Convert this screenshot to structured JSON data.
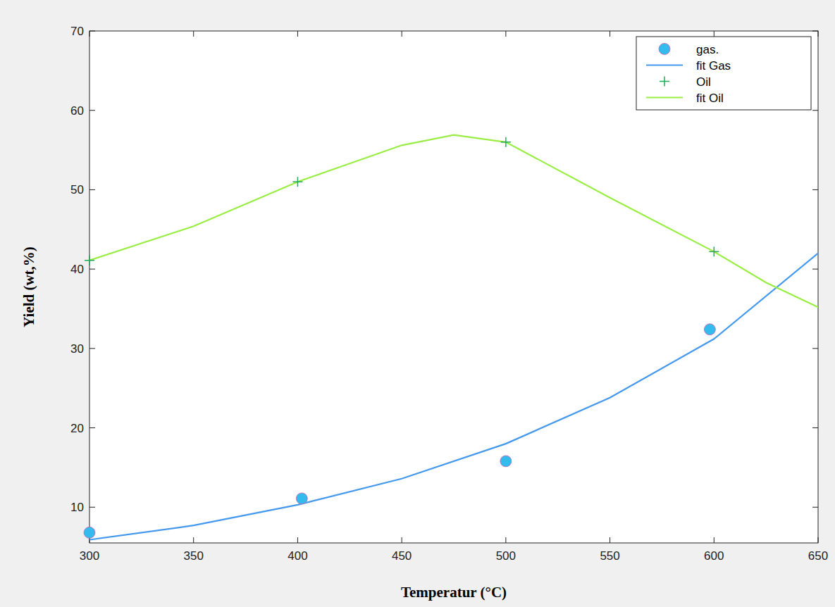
{
  "chart_data": {
    "type": "scatter",
    "xlabel": "Temperatur (°C)",
    "ylabel": "Yield (wt,%)",
    "xlim": [
      300,
      650
    ],
    "xticks": [
      300,
      350,
      400,
      450,
      500,
      550,
      600,
      650
    ],
    "ylim": [
      5.5,
      70
    ],
    "yticks": [
      10,
      20,
      30,
      40,
      50,
      60,
      70
    ],
    "grid": false,
    "legend": "top-right",
    "series": [
      {
        "name": "gas.",
        "type": "scatter",
        "marker": "circle",
        "color": "#33bbee",
        "x": [
          300,
          402,
          500,
          598
        ],
        "values": [
          6.8,
          11.1,
          15.8,
          32.4
        ]
      },
      {
        "name": "fit Gas",
        "type": "line",
        "line_style": "solid",
        "color": "#4499ee",
        "x": [
          300,
          350,
          400,
          450,
          500,
          550,
          600,
          650
        ],
        "values": [
          5.9,
          7.7,
          10.3,
          13.6,
          18.0,
          23.8,
          31.2,
          42.0
        ]
      },
      {
        "name": "Oil",
        "type": "scatter",
        "marker": "plus",
        "color": "#22aa55",
        "x": [
          300,
          400,
          500,
          600
        ],
        "values": [
          41.1,
          51.0,
          56.0,
          42.2
        ]
      },
      {
        "name": "fit Oil",
        "type": "line",
        "line_style": "solid",
        "color": "#99ee44",
        "x": [
          300,
          350,
          400,
          450,
          475,
          500,
          550,
          600,
          625,
          650
        ],
        "values": [
          41.1,
          45.4,
          51.0,
          55.6,
          56.9,
          56.0,
          49.0,
          42.2,
          38.3,
          35.2
        ]
      }
    ]
  }
}
